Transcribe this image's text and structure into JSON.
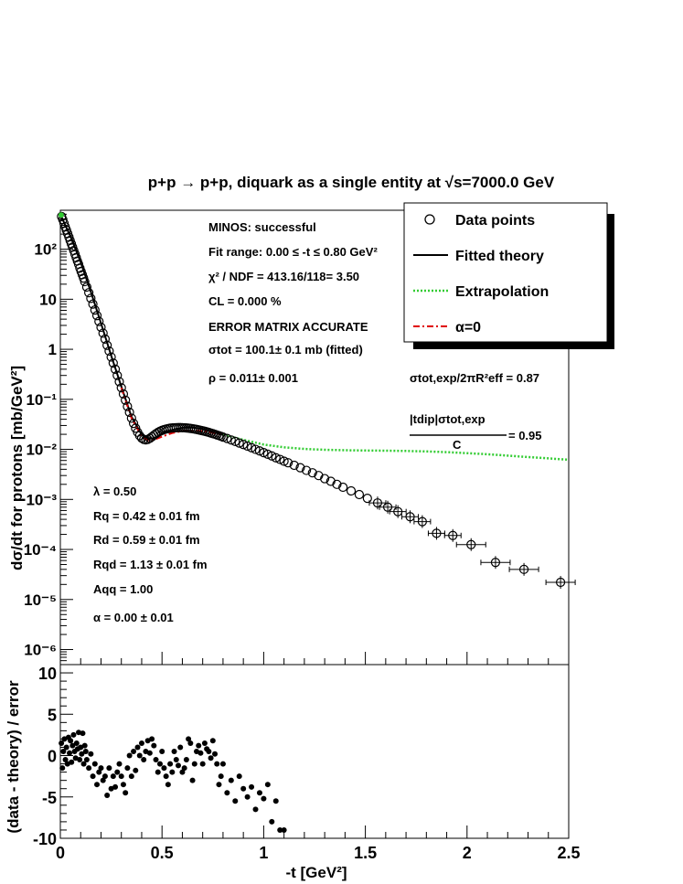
{
  "title": "p+p → p+p, diquark as a single entity at √s=7000.0 GeV",
  "legend": {
    "items": [
      {
        "label": "Data points",
        "kind": "marker"
      },
      {
        "label": "Fitted theory",
        "kind": "solid",
        "color": "#000000"
      },
      {
        "label": "Extrapolation",
        "kind": "dotted",
        "color": "#33cc33"
      },
      {
        "label": "α=0",
        "kind": "dashdot",
        "color": "#e00000"
      }
    ]
  },
  "fit_info": [
    "MINOS: successful",
    "Fit range: 0.00 ≤ -t ≤ 0.80 GeV²",
    "χ² / NDF = 413.16/118= 3.50",
    "CL = 0.000 %",
    "ERROR MATRIX ACCURATE",
    "σtot = 100.1±  0.1 mb (fitted)",
    "ρ = 0.011± 0.001"
  ],
  "ratio_info": [
    "σtot,exp/2πR²eff = 0.87",
    "|tdip|σtot,exp",
    "C",
    "= 0.95"
  ],
  "params": [
    "λ = 0.50",
    "Rq = 0.42 ± 0.01 fm",
    "Rd = 0.59 ± 0.01 fm",
    "Rqd = 1.13 ± 0.01 fm",
    "Aqq = 1.00",
    "α = 0.00 ± 0.01"
  ],
  "chart_data": [
    {
      "type": "scatter",
      "xlabel": "-t [GeV²]",
      "ylabel": "dσ/dt for protons [mb/GeV²]",
      "xlim": [
        0,
        2.5
      ],
      "ylim": [
        5e-07,
        600
      ],
      "yscale": "log",
      "ytick_labels": [
        "10⁻⁶",
        "10⁻⁵",
        "10⁻⁴",
        "10⁻³",
        "10⁻²",
        "10⁻¹",
        "1",
        "10",
        "10²"
      ],
      "grid": false,
      "legend_position": "top-right",
      "series": [
        {
          "name": "Data points",
          "marker": "open-circle",
          "x": [
            0.006,
            0.012,
            0.018,
            0.024,
            0.03,
            0.036,
            0.042,
            0.048,
            0.054,
            0.06,
            0.066,
            0.072,
            0.078,
            0.084,
            0.09,
            0.096,
            0.102,
            0.108,
            0.114,
            0.12,
            0.13,
            0.14,
            0.15,
            0.16,
            0.17,
            0.18,
            0.19,
            0.2,
            0.21,
            0.22,
            0.23,
            0.24,
            0.25,
            0.26,
            0.27,
            0.28,
            0.29,
            0.3,
            0.31,
            0.32,
            0.33,
            0.34,
            0.35,
            0.36,
            0.37,
            0.38,
            0.39,
            0.4,
            0.41,
            0.42,
            0.43,
            0.44,
            0.45,
            0.46,
            0.47,
            0.48,
            0.49,
            0.5,
            0.51,
            0.52,
            0.53,
            0.54,
            0.55,
            0.56,
            0.57,
            0.58,
            0.59,
            0.6,
            0.61,
            0.62,
            0.63,
            0.64,
            0.65,
            0.66,
            0.67,
            0.68,
            0.69,
            0.7,
            0.71,
            0.72,
            0.73,
            0.74,
            0.75,
            0.76,
            0.77,
            0.78,
            0.79,
            0.8,
            0.82,
            0.84,
            0.86,
            0.88,
            0.9,
            0.92,
            0.94,
            0.96,
            0.98,
            1.0,
            1.02,
            1.04,
            1.06,
            1.08,
            1.1,
            1.12,
            1.15,
            1.18,
            1.21,
            1.24,
            1.27,
            1.3,
            1.33,
            1.36,
            1.39,
            1.43,
            1.47,
            1.51,
            1.56,
            1.61,
            1.66,
            1.72,
            1.78,
            1.85,
            1.93,
            2.02,
            2.14,
            2.28,
            2.46
          ],
          "y": [
            450,
            390,
            330,
            280,
            240,
            205,
            175,
            150,
            128,
            110,
            94,
            80,
            68,
            58,
            50,
            42,
            36,
            31,
            26.5,
            22.5,
            17.5,
            13.5,
            10.4,
            8.0,
            6.1,
            4.7,
            3.6,
            2.75,
            2.1,
            1.6,
            1.2,
            0.92,
            0.7,
            0.53,
            0.4,
            0.3,
            0.225,
            0.17,
            0.128,
            0.096,
            0.072,
            0.055,
            0.042,
            0.033,
            0.0265,
            0.022,
            0.0188,
            0.0168,
            0.0158,
            0.0155,
            0.0158,
            0.0166,
            0.0178,
            0.0192,
            0.0205,
            0.0218,
            0.023,
            0.024,
            0.0248,
            0.0255,
            0.026,
            0.0265,
            0.0268,
            0.027,
            0.0271,
            0.0272,
            0.0272,
            0.0271,
            0.027,
            0.0268,
            0.0265,
            0.0262,
            0.0258,
            0.0254,
            0.025,
            0.0245,
            0.024,
            0.0235,
            0.023,
            0.0224,
            0.0218,
            0.0212,
            0.0206,
            0.02,
            0.0194,
            0.0188,
            0.0182,
            0.0176,
            0.0165,
            0.0154,
            0.0144,
            0.0134,
            0.0125,
            0.0116,
            0.0108,
            0.01,
            0.0093,
            0.0086,
            0.008,
            0.0074,
            0.0068,
            0.0063,
            0.0058,
            0.0054,
            0.0048,
            0.0043,
            0.0038,
            0.0034,
            0.003,
            0.0026,
            0.0023,
            0.002,
            0.00175,
            0.00148,
            0.00125,
            0.00105,
            0.00085,
            0.0007,
            0.00057,
            0.00045,
            0.00036,
            0.00021,
            0.00019,
            0.000125,
            5.5e-05,
            4e-05,
            2.2e-05
          ]
        },
        {
          "name": "Fitted theory",
          "type": "line",
          "x": [
            0,
            0.02,
            0.05,
            0.1,
            0.15,
            0.2,
            0.25,
            0.3,
            0.35,
            0.4,
            0.43,
            0.46,
            0.5,
            0.55,
            0.6,
            0.65,
            0.7,
            0.75,
            0.8
          ],
          "y": [
            500,
            330,
            180,
            55,
            14,
            3.3,
            0.75,
            0.18,
            0.045,
            0.0195,
            0.0162,
            0.0168,
            0.0205,
            0.0245,
            0.027,
            0.0272,
            0.0255,
            0.0225,
            0.0195
          ]
        },
        {
          "name": "Extrapolation",
          "type": "line",
          "x": [
            0.8,
            0.9,
            1.0,
            1.1,
            1.2,
            1.3,
            1.4,
            1.5,
            1.6,
            1.7,
            1.8,
            1.9,
            2.0,
            2.1,
            2.2,
            2.3,
            2.4,
            2.5
          ],
          "y": [
            0.0195,
            0.0155,
            0.0125,
            0.011,
            0.0102,
            0.0098,
            0.0096,
            0.0095,
            0.0094,
            0.0093,
            0.0091,
            0.0088,
            0.0084,
            0.008,
            0.0075,
            0.007,
            0.0066,
            0.0062
          ]
        },
        {
          "name": "α=0",
          "type": "line",
          "x": [
            0.3,
            0.35,
            0.4,
            0.43,
            0.46,
            0.5,
            0.55,
            0.6,
            0.65,
            0.7,
            0.75,
            0.8
          ],
          "y": [
            0.17,
            0.042,
            0.018,
            0.0152,
            0.0155,
            0.018,
            0.0212,
            0.0232,
            0.0238,
            0.0232,
            0.0215,
            0.019
          ]
        }
      ]
    },
    {
      "type": "scatter",
      "xlabel": "-t [GeV²]",
      "ylabel": "(data - theory) / error",
      "xlim": [
        0,
        2.5
      ],
      "ylim": [
        -10,
        11
      ],
      "xticks": [
        0,
        0.5,
        1,
        1.5,
        2,
        2.5
      ],
      "xtick_labels": [
        "0",
        "0.5",
        "1",
        "1.5",
        "2",
        "2.5"
      ],
      "yticks": [
        -10,
        -5,
        0,
        5,
        10
      ],
      "ytick_labels": [
        "-10",
        "-5",
        "0",
        "5",
        "10"
      ],
      "grid": false,
      "series": [
        {
          "marker": "filled-circle",
          "x": [
            0.005,
            0.01,
            0.015,
            0.02,
            0.025,
            0.03,
            0.035,
            0.04,
            0.045,
            0.05,
            0.055,
            0.06,
            0.065,
            0.07,
            0.075,
            0.08,
            0.085,
            0.09,
            0.095,
            0.1,
            0.105,
            0.11,
            0.115,
            0.12,
            0.125,
            0.13,
            0.14,
            0.15,
            0.16,
            0.17,
            0.18,
            0.19,
            0.2,
            0.21,
            0.22,
            0.23,
            0.24,
            0.25,
            0.26,
            0.27,
            0.28,
            0.29,
            0.3,
            0.31,
            0.32,
            0.33,
            0.34,
            0.35,
            0.36,
            0.37,
            0.38,
            0.39,
            0.4,
            0.41,
            0.42,
            0.43,
            0.44,
            0.45,
            0.46,
            0.47,
            0.48,
            0.49,
            0.5,
            0.51,
            0.52,
            0.53,
            0.54,
            0.55,
            0.56,
            0.57,
            0.58,
            0.59,
            0.6,
            0.61,
            0.62,
            0.63,
            0.64,
            0.65,
            0.66,
            0.67,
            0.68,
            0.69,
            0.7,
            0.71,
            0.72,
            0.73,
            0.74,
            0.75,
            0.76,
            0.77,
            0.78,
            0.79,
            0.8,
            0.82,
            0.84,
            0.86,
            0.88,
            0.9,
            0.92,
            0.94,
            0.96,
            0.98,
            1.0,
            1.02,
            1.04,
            1.06,
            1.08,
            1.1
          ],
          "y": [
            1.5,
            -1.5,
            0.5,
            2.0,
            -0.5,
            1.0,
            -1.0,
            2.2,
            0.3,
            1.8,
            -0.8,
            1.2,
            2.5,
            0.5,
            -0.3,
            1.5,
            0.8,
            2.8,
            -0.5,
            1.0,
            0.2,
            2.7,
            -1.0,
            1.2,
            0.5,
            -0.5,
            -1.5,
            0.2,
            -2.5,
            -1.0,
            -3.5,
            -2.0,
            -1.5,
            -3.0,
            -2.5,
            -4.8,
            -1.5,
            -4.0,
            -2.5,
            -3.8,
            -2.0,
            -1.0,
            -2.5,
            -3.5,
            -4.5,
            -1.5,
            0.0,
            -2.5,
            0.5,
            -1.8,
            1.0,
            0.0,
            1.5,
            -0.5,
            0.5,
            1.8,
            0.3,
            2.0,
            1.2,
            -0.5,
            -2.0,
            -1.0,
            0.5,
            -1.5,
            -2.5,
            -3.5,
            -1.0,
            -2.0,
            0.5,
            -0.5,
            -1.2,
            1.0,
            -2.0,
            -1.5,
            -0.5,
            2.0,
            1.5,
            -3.0,
            -1.0,
            0.5,
            1.2,
            0.3,
            -1.0,
            1.5,
            0.8,
            0.5,
            -0.3,
            1.8,
            0.2,
            -1.0,
            -3.5,
            -2.5,
            -1.0,
            -4.5,
            -3.0,
            -5.5,
            -2.5,
            -4.0,
            -5.0,
            -3.8,
            -6.5,
            -4.5,
            -5.2,
            -3.5,
            -8.0,
            -5.5,
            -9.0,
            -9.0
          ]
        }
      ]
    }
  ]
}
